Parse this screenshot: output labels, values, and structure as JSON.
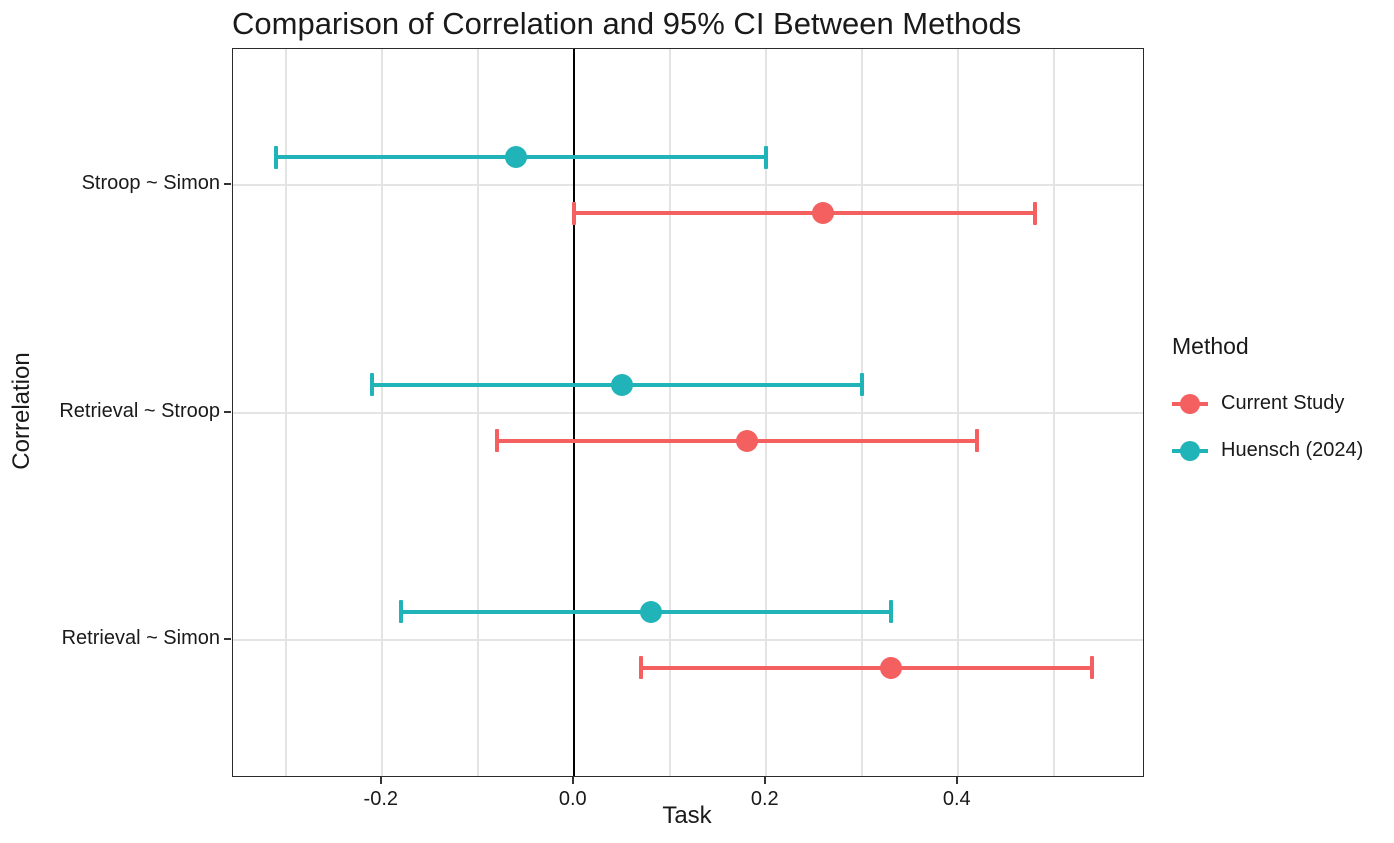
{
  "chart_data": {
    "type": "dot-whisker-errorbar",
    "title": "Comparison of Correlation and 95% CI Between Methods",
    "xlabel": "Task",
    "ylabel": "Correlation",
    "categories": [
      "Stroop ~ Simon",
      "Retrieval ~ Stroop",
      "Retrieval ~ Simon"
    ],
    "x_ticks": [
      {
        "label": "-0.2",
        "value": -0.2
      },
      {
        "label": "0.0",
        "value": 0.0
      },
      {
        "label": "0.2",
        "value": 0.2
      },
      {
        "label": "0.4",
        "value": 0.4
      }
    ],
    "x_gridlines": [
      -0.3,
      -0.2,
      -0.1,
      0.0,
      0.1,
      0.2,
      0.3,
      0.4,
      0.5
    ],
    "xlim": [
      -0.355,
      0.593
    ],
    "reference_line_x": 0,
    "grid": true,
    "legend": {
      "title": "Method",
      "position": "right",
      "entries": [
        {
          "label": "Current Study",
          "color": "#F45F5F"
        },
        {
          "label": "Huensch (2024)",
          "color": "#20B4B8"
        }
      ]
    },
    "series": [
      {
        "name": "Current Study",
        "color": "#F45F5F",
        "points": [
          {
            "category": "Stroop ~ Simon",
            "r": 0.26,
            "ci_low": 0.0,
            "ci_high": 0.48
          },
          {
            "category": "Retrieval ~ Stroop",
            "r": 0.18,
            "ci_low": -0.08,
            "ci_high": 0.42
          },
          {
            "category": "Retrieval ~ Simon",
            "r": 0.33,
            "ci_low": 0.07,
            "ci_high": 0.54
          }
        ]
      },
      {
        "name": "Huensch (2024)",
        "color": "#20B4B8",
        "points": [
          {
            "category": "Stroop ~ Simon",
            "r": -0.06,
            "ci_low": -0.31,
            "ci_high": 0.2
          },
          {
            "category": "Retrieval ~ Stroop",
            "r": 0.05,
            "ci_low": -0.21,
            "ci_high": 0.3
          },
          {
            "category": "Retrieval ~ Simon",
            "r": 0.08,
            "ci_low": -0.18,
            "ci_high": 0.33
          }
        ]
      }
    ]
  }
}
